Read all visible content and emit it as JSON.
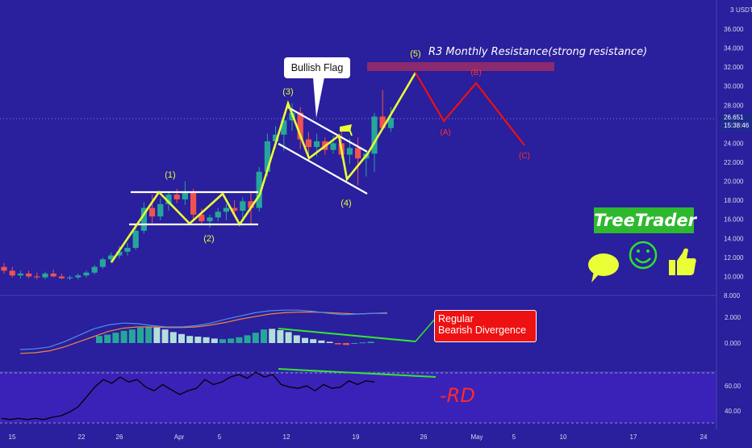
{
  "chart_data": {
    "type": "candlestick",
    "price_axis": {
      "unit": "USDT",
      "ticks": [
        "36.000",
        "34.000",
        "32.000",
        "30.000",
        "28.000",
        "26.000",
        "24.000",
        "22.000",
        "20.000",
        "18.000",
        "16.000",
        "14.000",
        "12.000",
        "10.000",
        "8.000"
      ],
      "top_tick": "3",
      "last_price": "26.651",
      "countdown": "15:38:46"
    },
    "x_axis": {
      "ticks": [
        "15",
        "22",
        "26",
        "Apr",
        "5",
        "12",
        "19",
        "26",
        "May",
        "5",
        "10",
        "17",
        "24"
      ]
    },
    "macd_axis": {
      "ticks": [
        "2.000",
        "0.000"
      ]
    },
    "rsi_axis": {
      "ticks": [
        "60.00",
        "40.00"
      ]
    },
    "candles": [
      {
        "o": 11.0,
        "h": 11.4,
        "l": 10.3,
        "c": 10.6
      },
      {
        "o": 10.6,
        "h": 11.0,
        "l": 9.9,
        "c": 10.1
      },
      {
        "o": 10.1,
        "h": 10.6,
        "l": 9.8,
        "c": 10.3
      },
      {
        "o": 10.3,
        "h": 10.6,
        "l": 9.8,
        "c": 10.0
      },
      {
        "o": 10.0,
        "h": 10.4,
        "l": 9.7,
        "c": 9.9
      },
      {
        "o": 9.9,
        "h": 10.5,
        "l": 9.7,
        "c": 10.3
      },
      {
        "o": 10.3,
        "h": 10.7,
        "l": 9.9,
        "c": 10.0
      },
      {
        "o": 10.0,
        "h": 10.3,
        "l": 9.7,
        "c": 9.8
      },
      {
        "o": 9.8,
        "h": 10.1,
        "l": 9.6,
        "c": 9.9
      },
      {
        "o": 9.9,
        "h": 10.3,
        "l": 9.7,
        "c": 10.1
      },
      {
        "o": 10.1,
        "h": 10.6,
        "l": 9.9,
        "c": 10.4
      },
      {
        "o": 10.4,
        "h": 11.2,
        "l": 10.2,
        "c": 11.0
      },
      {
        "o": 11.0,
        "h": 12.0,
        "l": 10.8,
        "c": 11.8
      },
      {
        "o": 11.8,
        "h": 12.5,
        "l": 11.4,
        "c": 12.2
      },
      {
        "o": 12.2,
        "h": 13.2,
        "l": 11.9,
        "c": 12.6
      },
      {
        "o": 12.6,
        "h": 13.5,
        "l": 12.2,
        "c": 13.0
      },
      {
        "o": 13.0,
        "h": 15.5,
        "l": 12.8,
        "c": 14.8
      },
      {
        "o": 14.8,
        "h": 17.8,
        "l": 14.5,
        "c": 17.2
      },
      {
        "o": 17.2,
        "h": 18.6,
        "l": 15.6,
        "c": 16.3
      },
      {
        "o": 16.3,
        "h": 18.2,
        "l": 15.9,
        "c": 17.6
      },
      {
        "o": 17.6,
        "h": 18.9,
        "l": 16.9,
        "c": 18.6
      },
      {
        "o": 18.6,
        "h": 19.2,
        "l": 17.7,
        "c": 18.1
      },
      {
        "o": 18.1,
        "h": 20.0,
        "l": 17.5,
        "c": 18.9
      },
      {
        "o": 18.9,
        "h": 19.2,
        "l": 15.8,
        "c": 16.5
      },
      {
        "o": 16.5,
        "h": 17.1,
        "l": 15.4,
        "c": 15.8
      },
      {
        "o": 15.8,
        "h": 16.5,
        "l": 15.1,
        "c": 16.2
      },
      {
        "o": 16.2,
        "h": 17.2,
        "l": 15.8,
        "c": 16.8
      },
      {
        "o": 16.8,
        "h": 17.6,
        "l": 15.9,
        "c": 17.2
      },
      {
        "o": 17.2,
        "h": 18.0,
        "l": 16.5,
        "c": 16.9
      },
      {
        "o": 16.9,
        "h": 18.3,
        "l": 16.0,
        "c": 17.9
      },
      {
        "o": 17.9,
        "h": 18.8,
        "l": 15.4,
        "c": 17.2
      },
      {
        "o": 17.2,
        "h": 21.5,
        "l": 16.8,
        "c": 21.0
      },
      {
        "o": 21.0,
        "h": 25.0,
        "l": 20.5,
        "c": 24.2
      },
      {
        "o": 24.2,
        "h": 25.8,
        "l": 23.5,
        "c": 24.9
      },
      {
        "o": 24.9,
        "h": 27.0,
        "l": 23.2,
        "c": 26.4
      },
      {
        "o": 26.4,
        "h": 28.2,
        "l": 25.3,
        "c": 27.2
      },
      {
        "o": 27.2,
        "h": 27.8,
        "l": 23.4,
        "c": 24.4
      },
      {
        "o": 24.4,
        "h": 25.2,
        "l": 22.8,
        "c": 23.6
      },
      {
        "o": 23.6,
        "h": 25.0,
        "l": 22.6,
        "c": 24.2
      },
      {
        "o": 24.2,
        "h": 24.6,
        "l": 22.8,
        "c": 23.3
      },
      {
        "o": 23.3,
        "h": 24.8,
        "l": 22.9,
        "c": 24.0
      },
      {
        "o": 24.0,
        "h": 25.5,
        "l": 22.4,
        "c": 22.8
      },
      {
        "o": 22.8,
        "h": 24.5,
        "l": 21.8,
        "c": 23.5
      },
      {
        "o": 23.5,
        "h": 24.6,
        "l": 19.6,
        "c": 22.4
      },
      {
        "o": 22.4,
        "h": 23.0,
        "l": 20.5,
        "c": 22.9
      },
      {
        "o": 22.9,
        "h": 27.2,
        "l": 21.0,
        "c": 26.8
      },
      {
        "o": 26.8,
        "h": 29.6,
        "l": 25.5,
        "c": 25.6
      },
      {
        "o": 25.6,
        "h": 27.8,
        "l": 25.2,
        "c": 26.65
      }
    ],
    "macd_histogram": [
      0.55,
      0.65,
      0.8,
      0.95,
      1.05,
      1.2,
      1.25,
      1.2,
      1.05,
      0.85,
      0.7,
      0.55,
      0.5,
      0.45,
      0.35,
      0.3,
      0.35,
      0.45,
      0.6,
      0.8,
      1.05,
      1.1,
      1.0,
      0.85,
      0.6,
      0.4,
      0.3,
      0.2,
      0.1,
      -0.1,
      -0.15,
      0.0,
      0.05,
      0.1
    ],
    "macd_hist_bright": [
      true,
      true,
      true,
      true,
      true,
      true,
      true,
      false,
      false,
      false,
      false,
      false,
      false,
      false,
      false,
      true,
      true,
      true,
      true,
      true,
      true,
      false,
      false,
      false,
      false,
      false,
      false,
      false,
      false,
      false,
      false,
      true,
      true,
      true
    ],
    "macd_line": [
      -0.5,
      -0.45,
      -0.3,
      0.1,
      0.6,
      1.1,
      1.4,
      1.55,
      1.5,
      1.35,
      1.25,
      1.25,
      1.35,
      1.55,
      1.85,
      2.1,
      2.35,
      2.5,
      2.55,
      2.55,
      2.45,
      2.3,
      2.2,
      2.25,
      2.3,
      2.35
    ],
    "signal_line": [
      -0.8,
      -0.75,
      -0.6,
      -0.3,
      0.1,
      0.5,
      0.9,
      1.15,
      1.25,
      1.25,
      1.2,
      1.2,
      1.25,
      1.4,
      1.6,
      1.85,
      2.05,
      2.25,
      2.35,
      2.4,
      2.4,
      2.35,
      2.3,
      2.25,
      2.3,
      2.3
    ],
    "rsi": [
      35,
      34,
      35,
      34,
      35,
      34,
      36,
      37,
      40,
      44,
      52,
      60,
      66,
      63,
      68,
      64,
      66,
      60,
      57,
      62,
      58,
      54,
      57,
      59,
      66,
      62,
      64,
      68,
      70,
      67,
      72,
      68,
      70,
      62,
      60,
      59,
      61,
      57,
      62,
      59,
      60,
      65,
      62,
      65,
      64
    ],
    "annotations": {
      "wave_labels": [
        "(1)",
        "(2)",
        "(3)",
        "(4)",
        "(5)",
        "(A)",
        "(B)",
        "(C)"
      ],
      "flag_label": "Bullish Flag",
      "resistance_label": "R3 Monthly Resistance(strong resistance)",
      "divergence_label_line1": "Regular",
      "divergence_label_line2": "Bearish Divergence",
      "rd_label": "-RD",
      "brand": "TreeTrader"
    }
  },
  "colors": {
    "background": "#2a1f9c",
    "indicator_background": "#3a22b8",
    "up_candle": "#26a69a",
    "down_candle": "#ef5350",
    "wave_line": "#eaff36",
    "correction_line": "#ee1111",
    "flag_lines": "#ffffff",
    "resistance_zone": "#8b2a6e",
    "divergence_line": "#32e632",
    "macd_line": "#4a8ff0",
    "signal_line": "#f0863c",
    "rsi_line": "#000000",
    "brand_bg": "#2eb82e"
  },
  "icons": [
    "speech-bubble-icon",
    "smiley-icon",
    "thumbs-up-icon",
    "flag-icon"
  ]
}
